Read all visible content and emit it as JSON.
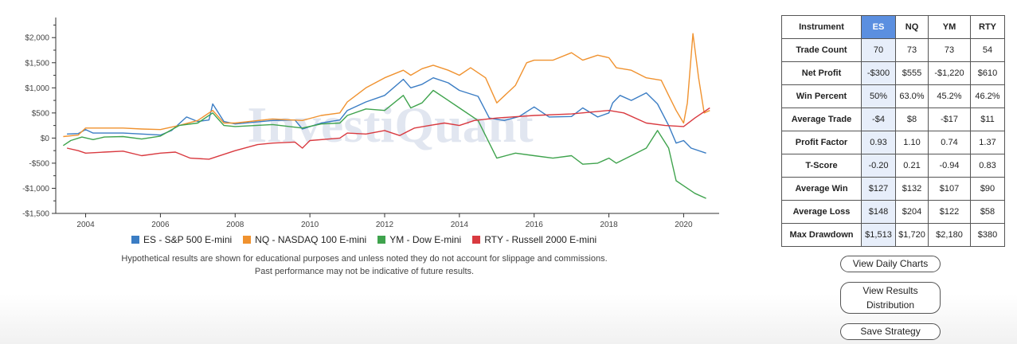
{
  "chart_data": {
    "type": "line",
    "xlim": [
      2003.2,
      2020.95
    ],
    "ylim": [
      -1500,
      2400
    ],
    "y_ticks": [
      {
        "value": 2000,
        "label": "$2,000"
      },
      {
        "value": 1500,
        "label": "$1,500"
      },
      {
        "value": 1000,
        "label": "$1,000"
      },
      {
        "value": 500,
        "label": "$500"
      },
      {
        "value": 0,
        "label": "$0"
      },
      {
        "value": -500,
        "label": "-$500"
      },
      {
        "value": -1000,
        "label": "-$1,000"
      },
      {
        "value": -1500,
        "label": "-$1,500"
      }
    ],
    "x_ticks": [
      {
        "value": 2004,
        "label": "2004"
      },
      {
        "value": 2006,
        "label": "2006"
      },
      {
        "value": 2008,
        "label": "2008"
      },
      {
        "value": 2010,
        "label": "2010"
      },
      {
        "value": 2012,
        "label": "2012"
      },
      {
        "value": 2014,
        "label": "2014"
      },
      {
        "value": 2016,
        "label": "2016"
      },
      {
        "value": 2018,
        "label": "2018"
      },
      {
        "value": 2020,
        "label": "2020"
      }
    ],
    "watermark": "InvestiQuant",
    "series": [
      {
        "name": "ES - S&P 500 E-mini",
        "color": "#3b7dc4",
        "points": [
          [
            2003.5,
            80
          ],
          [
            2003.8,
            90
          ],
          [
            2004.0,
            170
          ],
          [
            2004.2,
            100
          ],
          [
            2005.0,
            100
          ],
          [
            2005.5,
            80
          ],
          [
            2006.0,
            60
          ],
          [
            2006.3,
            150
          ],
          [
            2006.7,
            420
          ],
          [
            2007.0,
            330
          ],
          [
            2007.3,
            360
          ],
          [
            2007.4,
            680
          ],
          [
            2007.7,
            330
          ],
          [
            2008.0,
            280
          ],
          [
            2009.0,
            350
          ],
          [
            2009.6,
            360
          ],
          [
            2009.8,
            180
          ],
          [
            2010.3,
            300
          ],
          [
            2010.8,
            360
          ],
          [
            2011.0,
            550
          ],
          [
            2011.5,
            720
          ],
          [
            2012.0,
            850
          ],
          [
            2012.5,
            1170
          ],
          [
            2012.7,
            1000
          ],
          [
            2013.0,
            1070
          ],
          [
            2013.3,
            1200
          ],
          [
            2013.7,
            1100
          ],
          [
            2014.0,
            950
          ],
          [
            2014.5,
            830
          ],
          [
            2014.8,
            400
          ],
          [
            2015.2,
            350
          ],
          [
            2015.6,
            430
          ],
          [
            2016.0,
            620
          ],
          [
            2016.4,
            420
          ],
          [
            2017.0,
            430
          ],
          [
            2017.3,
            600
          ],
          [
            2017.7,
            420
          ],
          [
            2018.0,
            500
          ],
          [
            2018.1,
            700
          ],
          [
            2018.3,
            850
          ],
          [
            2018.6,
            750
          ],
          [
            2019.0,
            900
          ],
          [
            2019.3,
            680
          ],
          [
            2019.6,
            250
          ],
          [
            2019.8,
            -100
          ],
          [
            2020.0,
            -50
          ],
          [
            2020.2,
            -200
          ],
          [
            2020.6,
            -300
          ]
        ]
      },
      {
        "name": "NQ - NASDAQ 100 E-mini",
        "color": "#f0922f",
        "points": [
          [
            2003.4,
            30
          ],
          [
            2003.8,
            60
          ],
          [
            2004.0,
            200
          ],
          [
            2005.0,
            200
          ],
          [
            2005.5,
            180
          ],
          [
            2006.0,
            170
          ],
          [
            2006.5,
            250
          ],
          [
            2007.0,
            350
          ],
          [
            2007.4,
            550
          ],
          [
            2007.7,
            300
          ],
          [
            2008.0,
            300
          ],
          [
            2009.0,
            380
          ],
          [
            2009.8,
            350
          ],
          [
            2010.3,
            450
          ],
          [
            2010.8,
            500
          ],
          [
            2011.0,
            720
          ],
          [
            2011.5,
            1000
          ],
          [
            2012.0,
            1200
          ],
          [
            2012.5,
            1350
          ],
          [
            2012.7,
            1250
          ],
          [
            2013.0,
            1380
          ],
          [
            2013.3,
            1450
          ],
          [
            2013.7,
            1350
          ],
          [
            2014.0,
            1250
          ],
          [
            2014.3,
            1400
          ],
          [
            2014.7,
            1200
          ],
          [
            2015.0,
            700
          ],
          [
            2015.5,
            1050
          ],
          [
            2015.8,
            1500
          ],
          [
            2016.0,
            1550
          ],
          [
            2016.5,
            1550
          ],
          [
            2017.0,
            1700
          ],
          [
            2017.3,
            1550
          ],
          [
            2017.7,
            1650
          ],
          [
            2018.0,
            1600
          ],
          [
            2018.2,
            1400
          ],
          [
            2018.6,
            1350
          ],
          [
            2019.0,
            1200
          ],
          [
            2019.4,
            1150
          ],
          [
            2019.6,
            850
          ],
          [
            2019.8,
            550
          ],
          [
            2020.0,
            300
          ],
          [
            2020.1,
            700
          ],
          [
            2020.25,
            2080
          ],
          [
            2020.4,
            1200
          ],
          [
            2020.55,
            500
          ],
          [
            2020.7,
            550
          ]
        ]
      },
      {
        "name": "YM - Dow E-mini",
        "color": "#3fa34d",
        "points": [
          [
            2003.4,
            -150
          ],
          [
            2003.6,
            -50
          ],
          [
            2003.9,
            20
          ],
          [
            2004.2,
            -30
          ],
          [
            2004.5,
            20
          ],
          [
            2005.0,
            30
          ],
          [
            2005.5,
            -20
          ],
          [
            2006.0,
            40
          ],
          [
            2006.5,
            250
          ],
          [
            2007.0,
            300
          ],
          [
            2007.4,
            500
          ],
          [
            2007.7,
            250
          ],
          [
            2008.0,
            230
          ],
          [
            2009.0,
            270
          ],
          [
            2009.8,
            200
          ],
          [
            2010.3,
            280
          ],
          [
            2010.8,
            300
          ],
          [
            2011.0,
            450
          ],
          [
            2011.5,
            580
          ],
          [
            2012.0,
            550
          ],
          [
            2012.5,
            850
          ],
          [
            2012.7,
            600
          ],
          [
            2013.0,
            700
          ],
          [
            2013.3,
            950
          ],
          [
            2013.7,
            750
          ],
          [
            2014.0,
            600
          ],
          [
            2014.5,
            350
          ],
          [
            2014.8,
            -100
          ],
          [
            2015.0,
            -400
          ],
          [
            2015.5,
            -300
          ],
          [
            2016.0,
            -350
          ],
          [
            2016.5,
            -400
          ],
          [
            2017.0,
            -350
          ],
          [
            2017.3,
            -520
          ],
          [
            2017.7,
            -500
          ],
          [
            2018.0,
            -400
          ],
          [
            2018.2,
            -500
          ],
          [
            2018.6,
            -350
          ],
          [
            2019.0,
            -200
          ],
          [
            2019.3,
            150
          ],
          [
            2019.6,
            -200
          ],
          [
            2019.8,
            -850
          ],
          [
            2020.0,
            -950
          ],
          [
            2020.3,
            -1100
          ],
          [
            2020.6,
            -1200
          ]
        ]
      },
      {
        "name": "RTY - Russell 2000 E-mini",
        "color": "#d93a40",
        "points": [
          [
            2003.5,
            -200
          ],
          [
            2003.8,
            -250
          ],
          [
            2004.0,
            -300
          ],
          [
            2004.5,
            -280
          ],
          [
            2005.0,
            -260
          ],
          [
            2005.5,
            -350
          ],
          [
            2006.0,
            -300
          ],
          [
            2006.4,
            -280
          ],
          [
            2006.8,
            -400
          ],
          [
            2007.3,
            -420
          ],
          [
            2008.0,
            -250
          ],
          [
            2008.6,
            -130
          ],
          [
            2009.0,
            -100
          ],
          [
            2009.6,
            -80
          ],
          [
            2009.8,
            -200
          ],
          [
            2010.0,
            -50
          ],
          [
            2010.8,
            0
          ],
          [
            2011.0,
            100
          ],
          [
            2011.5,
            80
          ],
          [
            2012.0,
            150
          ],
          [
            2012.4,
            50
          ],
          [
            2012.8,
            200
          ],
          [
            2013.2,
            250
          ],
          [
            2013.6,
            300
          ],
          [
            2014.0,
            250
          ],
          [
            2014.4,
            350
          ],
          [
            2015.0,
            400
          ],
          [
            2016.0,
            450
          ],
          [
            2017.0,
            480
          ],
          [
            2018.0,
            550
          ],
          [
            2018.4,
            500
          ],
          [
            2019.0,
            300
          ],
          [
            2019.5,
            250
          ],
          [
            2020.0,
            230
          ],
          [
            2020.3,
            400
          ],
          [
            2020.7,
            600
          ]
        ]
      }
    ],
    "legend_placement": "bottom",
    "grid": false
  },
  "disclaimer": {
    "line1": "Hypothetical results are shown for educational purposes and unless noted they do not account for slippage and commissions.",
    "line2": "Past performance may not be indicative of future results."
  },
  "table": {
    "headers": [
      "Instrument",
      "ES",
      "NQ",
      "YM",
      "RTY"
    ],
    "active_column": "ES",
    "rows": [
      {
        "metric": "Trade Count",
        "values": [
          "70",
          "73",
          "73",
          "54"
        ]
      },
      {
        "metric": "Net Profit",
        "values": [
          "-$300",
          "$555",
          "-$1,220",
          "$610"
        ]
      },
      {
        "metric": "Win Percent",
        "values": [
          "50%",
          "63.0%",
          "45.2%",
          "46.2%"
        ]
      },
      {
        "metric": "Average Trade",
        "values": [
          "-$4",
          "$8",
          "-$17",
          "$11"
        ]
      },
      {
        "metric": "Profit Factor",
        "values": [
          "0.93",
          "1.10",
          "0.74",
          "1.37"
        ]
      },
      {
        "metric": "T-Score",
        "values": [
          "-0.20",
          "0.21",
          "-0.94",
          "0.83"
        ]
      },
      {
        "metric": "Average Win",
        "values": [
          "$127",
          "$132",
          "$107",
          "$90"
        ]
      },
      {
        "metric": "Average Loss",
        "values": [
          "$148",
          "$204",
          "$122",
          "$58"
        ]
      },
      {
        "metric": "Max Drawdown",
        "values": [
          "$1,513",
          "$1,720",
          "$2,180",
          "$380"
        ]
      }
    ]
  },
  "buttons": {
    "daily": "View Daily Charts",
    "dist_line1": "View Results",
    "dist_line2": "Distribution",
    "save": "Save Strategy"
  }
}
